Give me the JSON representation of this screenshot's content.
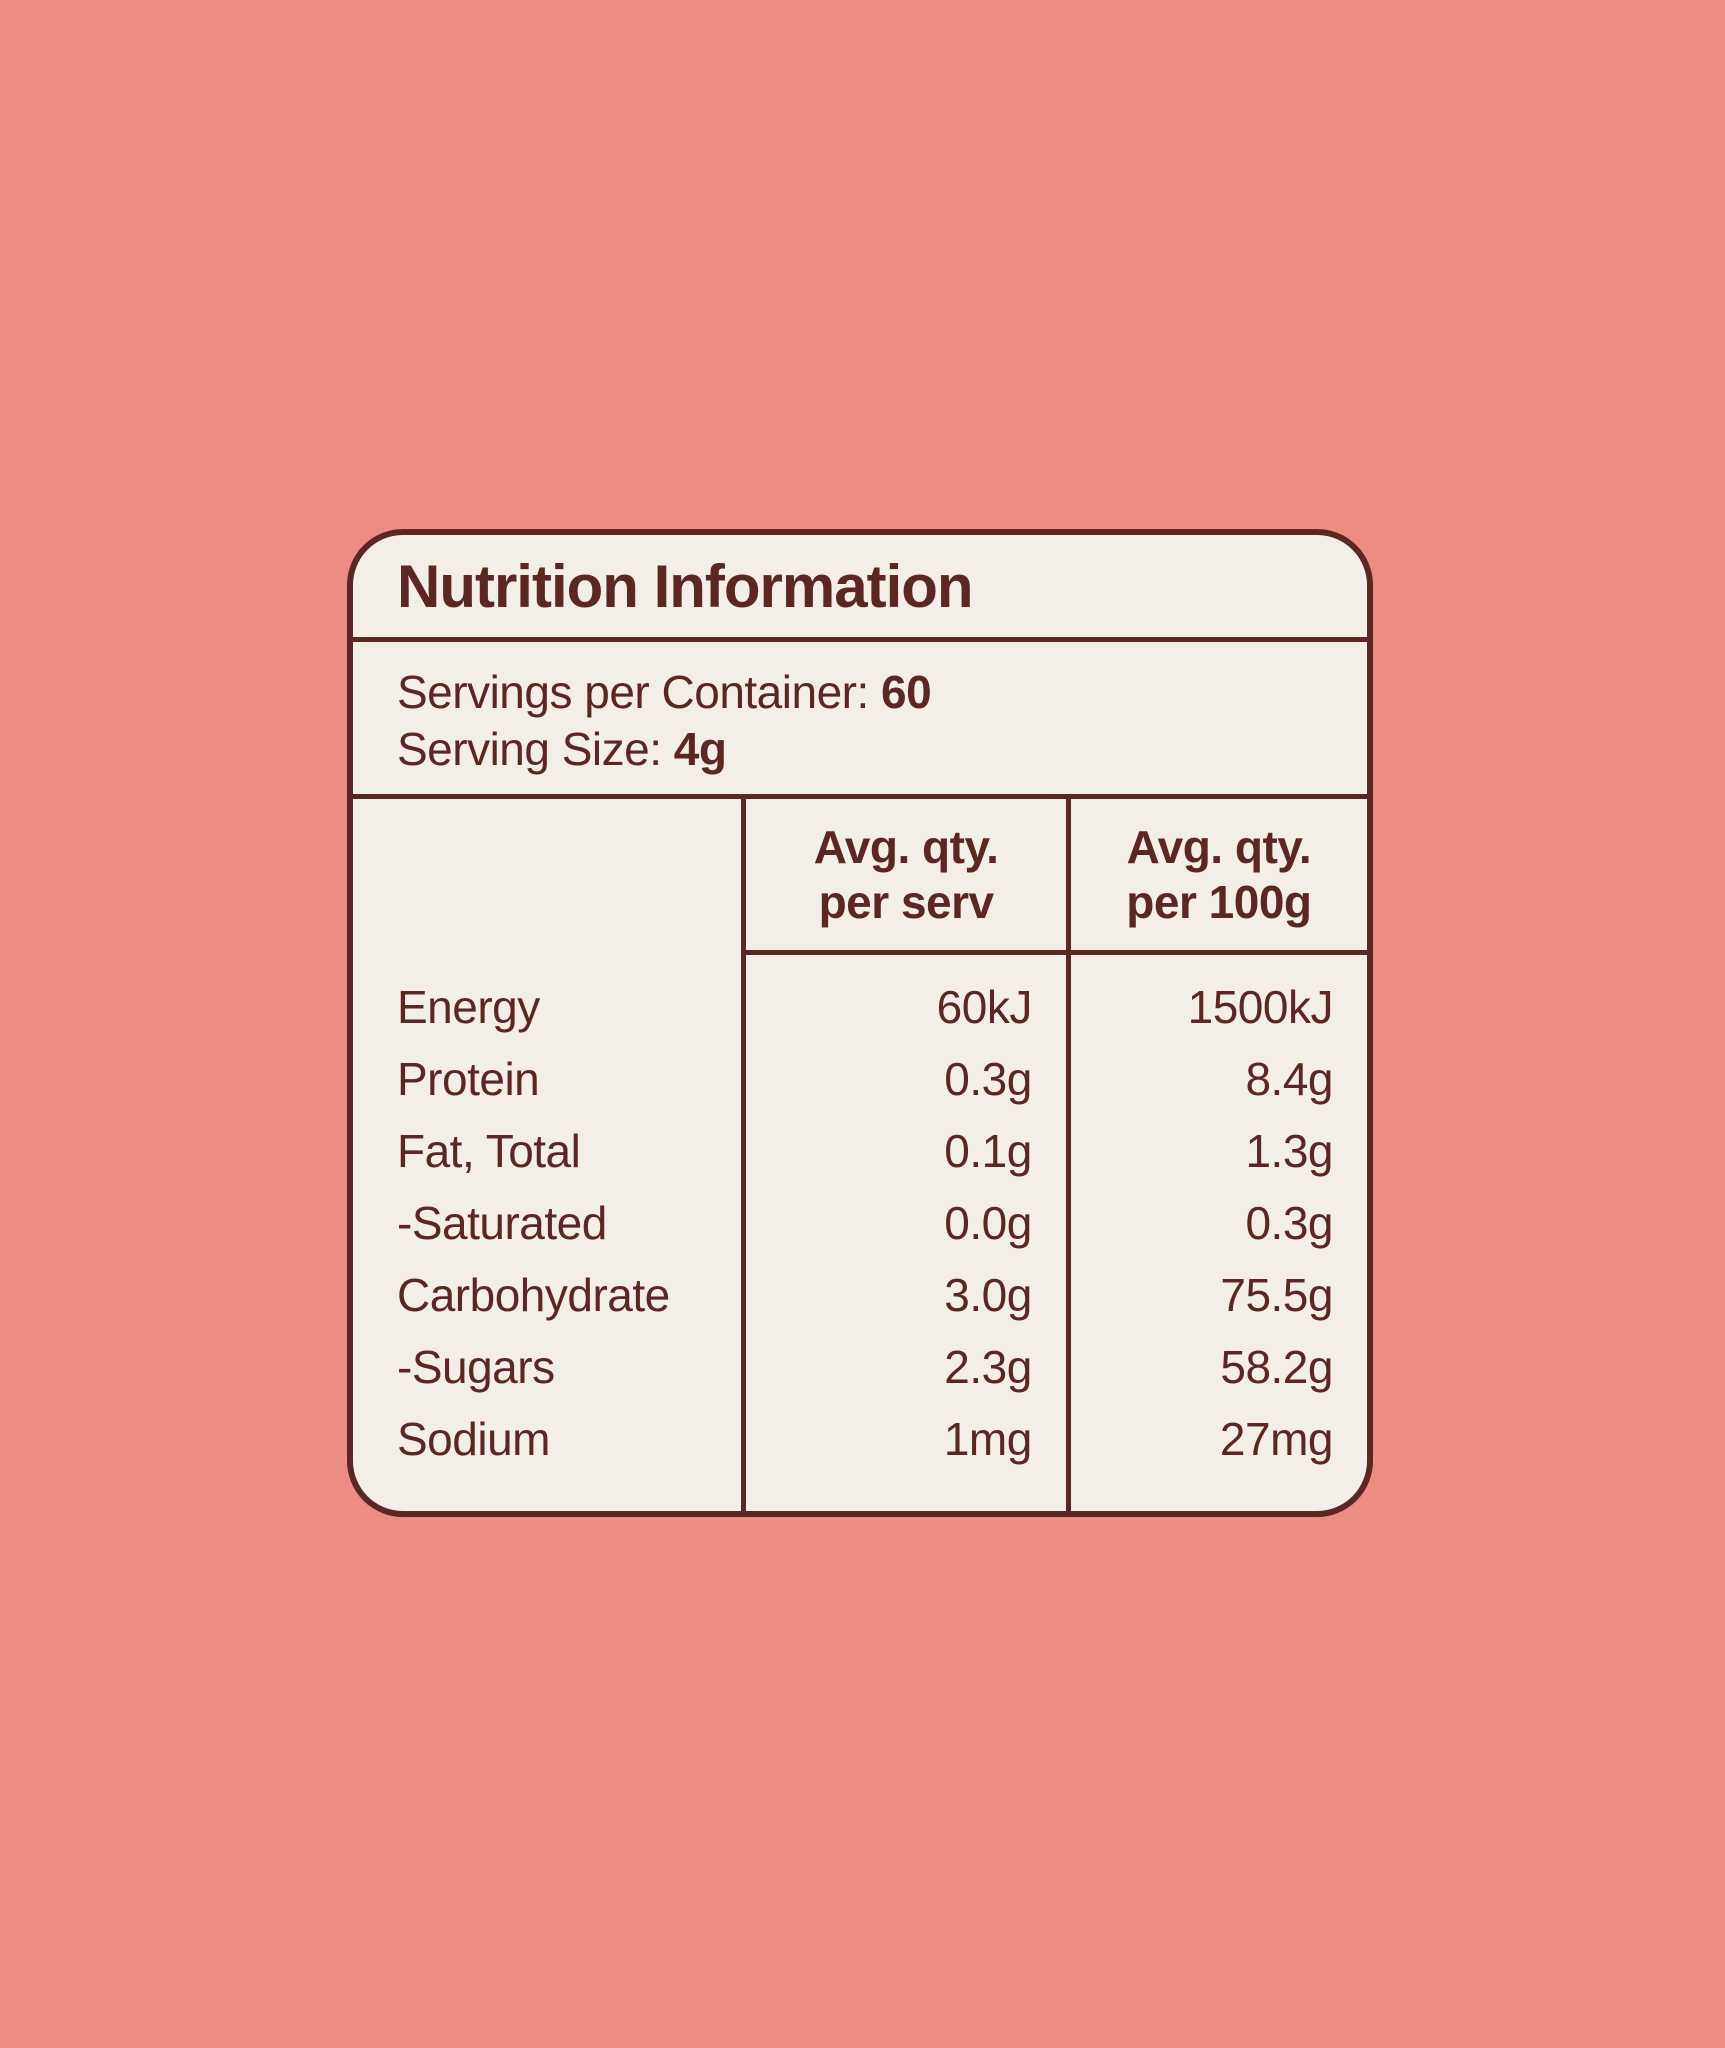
{
  "colors": {
    "background": "#EC8C83",
    "panel": "#F4EEE9",
    "ink": "#5C2722"
  },
  "panel": {
    "title": "Nutrition Information",
    "servings": [
      {
        "label": "Servings per Container:",
        "value": "60"
      },
      {
        "label": "Serving Size:",
        "value": "4g"
      }
    ],
    "table": {
      "headers": {
        "per_serv": {
          "line1": "Avg. qty.",
          "line2": "per serv"
        },
        "per_100g": {
          "line1": "Avg. qty.",
          "line2": "per 100g"
        }
      },
      "rows": [
        {
          "label": "Energy",
          "per_serv": "60kJ",
          "per_100g": "1500kJ"
        },
        {
          "label": "Protein",
          "per_serv": "0.3g",
          "per_100g": "8.4g"
        },
        {
          "label": "Fat, Total",
          "per_serv": "0.1g",
          "per_100g": "1.3g"
        },
        {
          "label": "-Saturated",
          "per_serv": "0.0g",
          "per_100g": "0.3g"
        },
        {
          "label": "Carbohydrate",
          "per_serv": "3.0g",
          "per_100g": "75.5g"
        },
        {
          "label": "-Sugars",
          "per_serv": "2.3g",
          "per_100g": "58.2g"
        },
        {
          "label": "Sodium",
          "per_serv": "1mg",
          "per_100g": "27mg"
        }
      ]
    }
  }
}
